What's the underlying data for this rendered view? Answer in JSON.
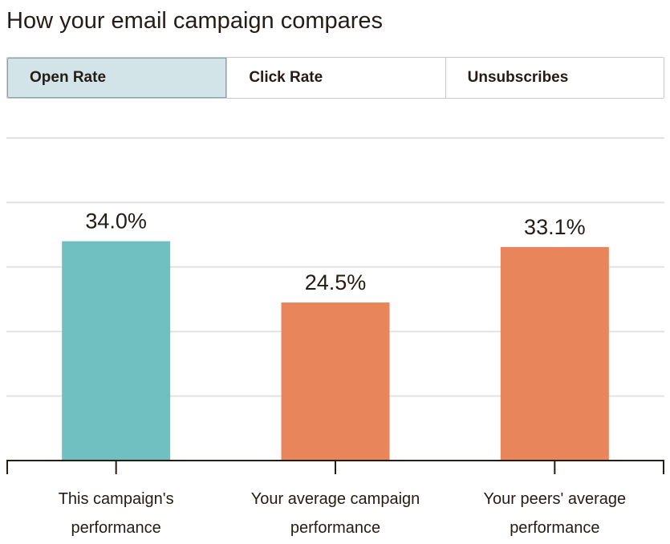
{
  "header": {
    "title": "How your email campaign compares"
  },
  "tabs": [
    {
      "label": "Open Rate",
      "active": true
    },
    {
      "label": "Click Rate",
      "active": false
    },
    {
      "label": "Unsubscribes",
      "active": false
    }
  ],
  "colors": {
    "this_campaign": "#70c0c1",
    "comparison": "#e8855b",
    "gridline": "#e2e2e2",
    "axis": "#241c15"
  },
  "chart_data": {
    "type": "bar",
    "categories": [
      [
        "This campaign's",
        "performance"
      ],
      [
        "Your average campaign",
        "performance"
      ],
      [
        "Your peers' average",
        "performance"
      ]
    ],
    "values": [
      34.0,
      24.5,
      33.1
    ],
    "data_labels": [
      "34.0%",
      "24.5%",
      "33.1%"
    ],
    "bar_colors": [
      "#70c0c1",
      "#e8855b",
      "#e8855b"
    ],
    "ylim": [
      0,
      50
    ],
    "grid": true
  }
}
